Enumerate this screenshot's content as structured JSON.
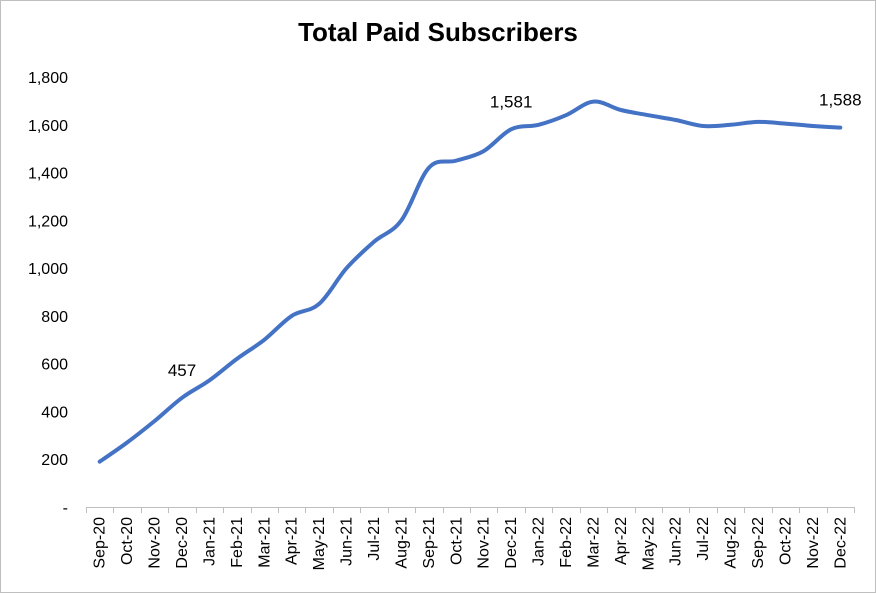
{
  "chart_data": {
    "type": "line",
    "title": "Total Paid Subscribers",
    "xlabel": "",
    "ylabel": "",
    "ylim": [
      0,
      1800
    ],
    "yticks": [
      0,
      200,
      400,
      600,
      800,
      1000,
      1200,
      1400,
      1600,
      1800
    ],
    "ytick_labels": [
      "-",
      "200",
      "400",
      "600",
      "800",
      "1,000",
      "1,200",
      "1,400",
      "1,600",
      "1,800"
    ],
    "grid": false,
    "legend": "none",
    "categories": [
      "Sep-20",
      "Oct-20",
      "Nov-20",
      "Dec-20",
      "Jan-21",
      "Feb-21",
      "Mar-21",
      "Apr-21",
      "May-21",
      "Jun-21",
      "Jul-21",
      "Aug-21",
      "Sep-21",
      "Oct-21",
      "Nov-21",
      "Dec-21",
      "Jan-22",
      "Feb-22",
      "Mar-22",
      "Apr-22",
      "May-22",
      "Jun-22",
      "Jul-22",
      "Aug-22",
      "Sep-22",
      "Oct-22",
      "Nov-22",
      "Dec-22"
    ],
    "series": [
      {
        "values": [
          190,
          270,
          360,
          457,
          530,
          620,
          700,
          800,
          850,
          1000,
          1110,
          1200,
          1420,
          1450,
          1490,
          1581,
          1600,
          1640,
          1697,
          1662,
          1640,
          1620,
          1595,
          1600,
          1612,
          1605,
          1595,
          1588
        ],
        "color": "#4472C4"
      }
    ],
    "data_labels": [
      {
        "index": 3,
        "text": "457"
      },
      {
        "index": 15,
        "text": "1,581"
      },
      {
        "index": 27,
        "text": "1,588"
      }
    ]
  }
}
